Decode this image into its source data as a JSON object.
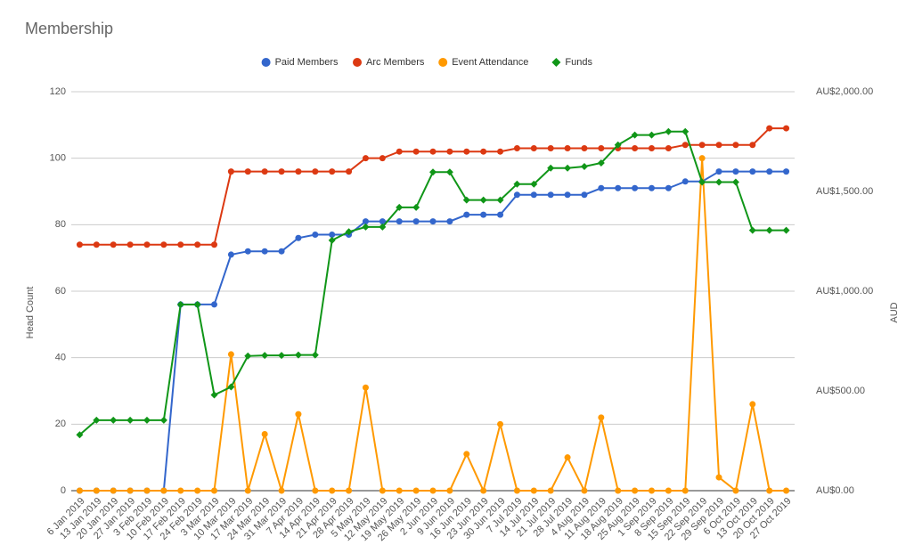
{
  "chart_data": {
    "type": "line",
    "title": "Membership",
    "y_label": "Head Count",
    "y2_label": "AUD",
    "categories": [
      "6 Jan 2019",
      "13 Jan 2019",
      "20 Jan 2019",
      "27 Jan 2019",
      "3 Feb 2019",
      "10 Feb 2019",
      "17 Feb 2019",
      "24 Feb 2019",
      "3 Mar 2019",
      "10 Mar 2019",
      "17 Mar 2019",
      "24 Mar 2019",
      "31 Mar 2019",
      "7 Apr 2019",
      "14 Apr 2019",
      "21 Apr 2019",
      "28 Apr 2019",
      "5 May 2019",
      "12 May 2019",
      "19 May 2019",
      "26 May 2019",
      "2 Jun 2019",
      "9 Jun 2019",
      "16 Jun 2019",
      "23 Jun 2019",
      "30 Jun 2019",
      "7 Jul 2019",
      "14 Jul 2019",
      "21 Jul 2019",
      "28 Jul 2019",
      "4 Aug 2019",
      "11 Aug 2019",
      "18 Aug 2019",
      "25 Aug 2019",
      "1 Sep 2019",
      "8 Sep 2019",
      "15 Sep 2019",
      "22 Sep 2019",
      "29 Sep 2019",
      "6 Oct 2019",
      "13 Oct 2019",
      "20 Oct 2019",
      "27 Oct 2019"
    ],
    "series": [
      {
        "name": "Paid Members",
        "color": "#3366cc",
        "marker": "circle",
        "values": [
          0,
          0,
          0,
          0,
          0,
          0,
          56,
          56,
          56,
          71,
          72,
          72,
          72,
          76,
          77,
          77,
          77,
          81,
          81,
          81,
          81,
          81,
          81,
          83,
          83,
          83,
          89,
          89,
          89,
          89,
          89,
          91,
          91,
          91,
          91,
          91,
          93,
          93,
          96,
          96,
          96,
          96,
          96
        ]
      },
      {
        "name": "Arc Members",
        "color": "#dc3912",
        "marker": "circle",
        "values": [
          74,
          74,
          74,
          74,
          74,
          74,
          74,
          74,
          74,
          96,
          96,
          96,
          96,
          96,
          96,
          96,
          96,
          100,
          100,
          102,
          102,
          102,
          102,
          102,
          102,
          102,
          103,
          103,
          103,
          103,
          103,
          103,
          103,
          103,
          103,
          103,
          104,
          104,
          104,
          104,
          104,
          109,
          109
        ]
      },
      {
        "name": "Event Attendance",
        "color": "#ff9900",
        "marker": "circle",
        "values": [
          0,
          0,
          0,
          0,
          0,
          0,
          0,
          0,
          0,
          41,
          0,
          17,
          0,
          23,
          0,
          0,
          0,
          31,
          0,
          0,
          0,
          0,
          0,
          11,
          0,
          20,
          0,
          0,
          0,
          10,
          0,
          22,
          0,
          0,
          0,
          0,
          0,
          100,
          4,
          0,
          26,
          0,
          0
        ]
      },
      {
        "name": "Funds",
        "color": "#109618",
        "marker": "diamond",
        "axis": "y2",
        "values": [
          280,
          353,
          353,
          353,
          353,
          353,
          933,
          933,
          480,
          520,
          675,
          678,
          678,
          680,
          680,
          1255,
          1298,
          1322,
          1322,
          1420,
          1420,
          1597,
          1597,
          1457,
          1457,
          1457,
          1537,
          1537,
          1617,
          1617,
          1625,
          1643,
          1733,
          1783,
          1783,
          1800,
          1800,
          1547,
          1547,
          1547,
          1305,
          1305,
          1305
        ]
      }
    ],
    "ylim": [
      0,
      120
    ],
    "yticks": [
      0,
      20,
      40,
      60,
      80,
      100,
      120
    ],
    "y2lim": [
      0,
      2000
    ],
    "y2ticks": [
      {
        "value": 0,
        "label": "AU$0.00"
      },
      {
        "value": 500,
        "label": "AU$500.00"
      },
      {
        "value": 1000,
        "label": "AU$1,000.00"
      },
      {
        "value": 1500,
        "label": "AU$1,500.00"
      },
      {
        "value": 2000,
        "label": "AU$2,000.00"
      }
    ],
    "grid": true,
    "legend": "top"
  }
}
